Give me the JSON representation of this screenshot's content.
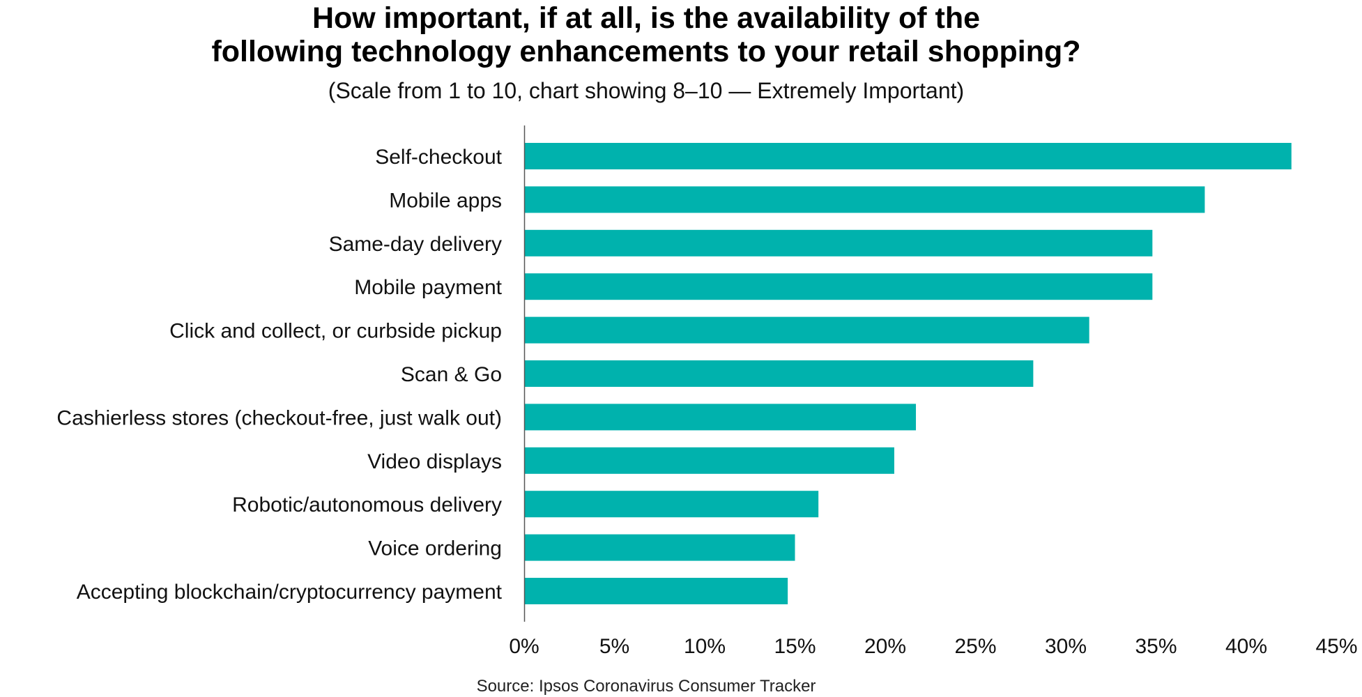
{
  "chart_data": {
    "type": "bar",
    "orientation": "horizontal",
    "title": [
      "How important, if at all, is the availability of the",
      "following technology enhancements to your retail shopping?"
    ],
    "subtitle": "(Scale from 1 to 10, chart showing 8–10 — Extremely Important)",
    "categories": [
      "Self-checkout",
      "Mobile apps",
      "Same-day delivery",
      "Mobile payment",
      "Click and collect, or curbside pickup",
      "Scan & Go",
      "Cashierless stores (checkout-free, just walk out)",
      "Video displays",
      "Robotic/autonomous delivery",
      "Voice ordering",
      "Accepting blockchain/cryptocurrency payment"
    ],
    "values": [
      42.5,
      37.7,
      34.8,
      34.8,
      31.3,
      28.2,
      21.7,
      20.5,
      16.3,
      15.0,
      14.6
    ],
    "xlim": [
      0,
      45
    ],
    "xticks": [
      0,
      5,
      10,
      15,
      20,
      25,
      30,
      35,
      40,
      45
    ],
    "xtick_labels": [
      "0%",
      "5%",
      "10%",
      "15%",
      "20%",
      "25%",
      "30%",
      "35%",
      "40%",
      "45%"
    ],
    "xlabel": "",
    "ylabel": "",
    "grid": false,
    "legend": "none",
    "bar_color": "#00b2ad",
    "axis_color": "#555555",
    "source": "Source: Ipsos Coronavirus Consumer Tracker"
  }
}
